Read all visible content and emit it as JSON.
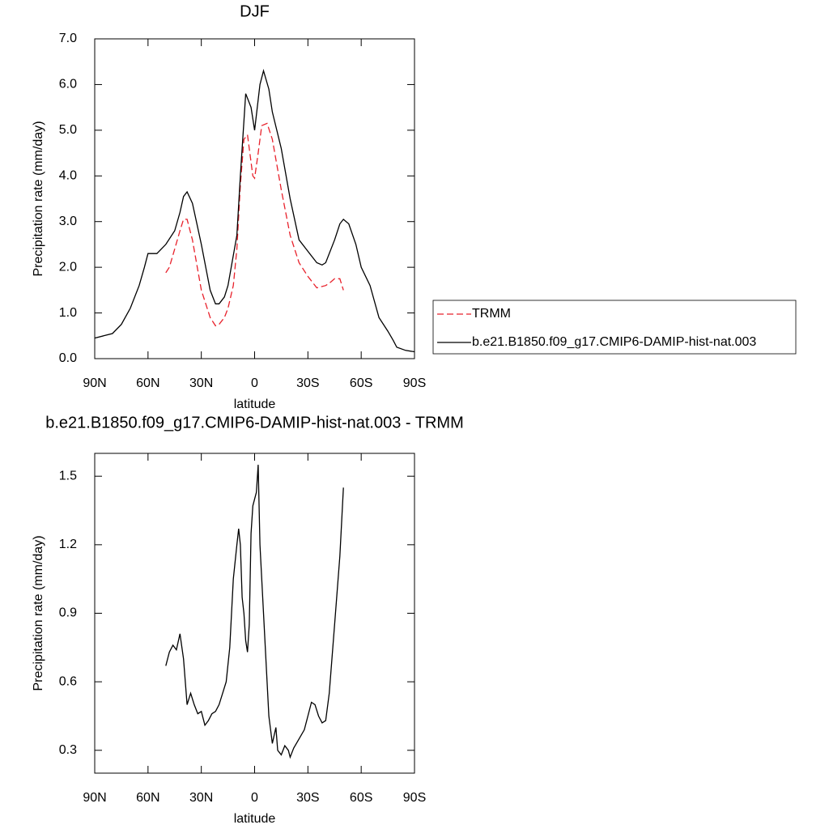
{
  "chart_data": [
    {
      "type": "line",
      "title": "DJF",
      "xlabel": "latitude",
      "ylabel": "Precipitation rate (mm/day)",
      "xlim": [
        90,
        -90
      ],
      "xticks": [
        {
          "value": 90,
          "label": "90N"
        },
        {
          "value": 60,
          "label": "60N"
        },
        {
          "value": 30,
          "label": "30N"
        },
        0,
        {
          "value": -30,
          "label": "30S"
        },
        {
          "value": -60,
          "label": "60S"
        },
        {
          "value": -90,
          "label": "90S"
        }
      ],
      "ylim": [
        0,
        7
      ],
      "yticks": [
        {
          "value": 0,
          "label": "0.0"
        },
        {
          "value": 1,
          "label": "1.0"
        },
        {
          "value": 2,
          "label": "2.0"
        },
        {
          "value": 3,
          "label": "3.0"
        },
        {
          "value": 4,
          "label": "4.0"
        },
        {
          "value": 5,
          "label": "5.0"
        },
        {
          "value": 6,
          "label": "6.0"
        },
        {
          "value": 7,
          "label": "7.0"
        }
      ],
      "legend": "right",
      "series": [
        {
          "name": "TRMM",
          "color": "#e8212b",
          "dash": true,
          "x": [
            50,
            48,
            45,
            42,
            40,
            38,
            35,
            30,
            25,
            22,
            20,
            17,
            15,
            12,
            10,
            8,
            6,
            4,
            1,
            0,
            -2,
            -4,
            -7,
            -10,
            -15,
            -20,
            -25,
            -30,
            -35,
            -40,
            -42,
            -45,
            -48,
            -50
          ],
          "values": [
            1.88,
            2.0,
            2.4,
            2.8,
            3.05,
            3.05,
            2.6,
            1.5,
            0.9,
            0.72,
            0.75,
            0.9,
            1.1,
            1.6,
            2.4,
            3.8,
            4.8,
            4.9,
            4.0,
            3.95,
            4.5,
            5.1,
            5.15,
            4.8,
            3.7,
            2.7,
            2.1,
            1.8,
            1.55,
            1.6,
            1.65,
            1.75,
            1.75,
            1.5
          ]
        },
        {
          "name": "b.e21.B1850.f09_g17.CMIP6-DAMIP-hist-nat.003",
          "color": "#000000",
          "dash": false,
          "x": [
            90,
            85,
            80,
            75,
            70,
            65,
            62,
            60,
            57,
            55,
            50,
            45,
            42,
            40,
            38,
            35,
            30,
            25,
            22,
            20,
            17,
            15,
            10,
            8,
            5,
            2,
            0,
            -3,
            -5,
            -8,
            -10,
            -15,
            -20,
            -25,
            -30,
            -35,
            -38,
            -40,
            -45,
            -48,
            -50,
            -53,
            -57,
            -60,
            -65,
            -70,
            -75,
            -78,
            -80,
            -85,
            -90
          ],
          "values": [
            0.45,
            0.5,
            0.55,
            0.75,
            1.1,
            1.6,
            2.0,
            2.3,
            2.3,
            2.3,
            2.5,
            2.8,
            3.2,
            3.55,
            3.65,
            3.4,
            2.5,
            1.5,
            1.2,
            1.2,
            1.35,
            1.6,
            2.7,
            4.0,
            5.8,
            5.5,
            5.0,
            6.0,
            6.3,
            5.9,
            5.4,
            4.6,
            3.5,
            2.6,
            2.35,
            2.1,
            2.05,
            2.1,
            2.6,
            2.95,
            3.05,
            2.95,
            2.5,
            2.0,
            1.6,
            0.9,
            0.6,
            0.4,
            0.25,
            0.18,
            0.15
          ]
        }
      ]
    },
    {
      "type": "line",
      "title": "b.e21.B1850.f09_g17.CMIP6-DAMIP-hist-nat.003 - TRMM",
      "xlabel": "latitude",
      "ylabel": "Precipitation rate (mm/day)",
      "xlim": [
        90,
        -90
      ],
      "xticks": [
        {
          "value": 90,
          "label": "90N"
        },
        {
          "value": 60,
          "label": "60N"
        },
        {
          "value": 30,
          "label": "30N"
        },
        0,
        {
          "value": -30,
          "label": "30S"
        },
        {
          "value": -60,
          "label": "60S"
        },
        {
          "value": -90,
          "label": "90S"
        }
      ],
      "ylim": [
        0.2,
        1.6
      ],
      "yticks": [
        0.3,
        0.6,
        0.9,
        1.2,
        1.5
      ],
      "series": [
        {
          "color": "#000000",
          "dash": false,
          "x": [
            50,
            48,
            46,
            44,
            42,
            40,
            38,
            36,
            34,
            32,
            30,
            28,
            26,
            24,
            22,
            20,
            18,
            16,
            14,
            12,
            10,
            9,
            8,
            7,
            6,
            5,
            4,
            3,
            2,
            1,
            -1,
            -2,
            -3,
            -5,
            -7,
            -8,
            -10,
            -12,
            -13,
            -15,
            -17,
            -19,
            -20,
            -22,
            -25,
            -28,
            -30,
            -32,
            -34,
            -36,
            -38,
            -40,
            -42,
            -45,
            -48,
            -50
          ],
          "values": [
            0.67,
            0.73,
            0.76,
            0.74,
            0.81,
            0.7,
            0.5,
            0.55,
            0.5,
            0.46,
            0.47,
            0.41,
            0.43,
            0.46,
            0.47,
            0.5,
            0.55,
            0.6,
            0.75,
            1.05,
            1.2,
            1.27,
            1.2,
            0.97,
            0.9,
            0.78,
            0.73,
            0.85,
            1.25,
            1.37,
            1.43,
            1.55,
            1.2,
            0.9,
            0.6,
            0.45,
            0.33,
            0.4,
            0.3,
            0.28,
            0.32,
            0.3,
            0.27,
            0.31,
            0.35,
            0.39,
            0.45,
            0.51,
            0.5,
            0.45,
            0.42,
            0.43,
            0.55,
            0.85,
            1.15,
            1.45
          ]
        }
      ]
    }
  ]
}
